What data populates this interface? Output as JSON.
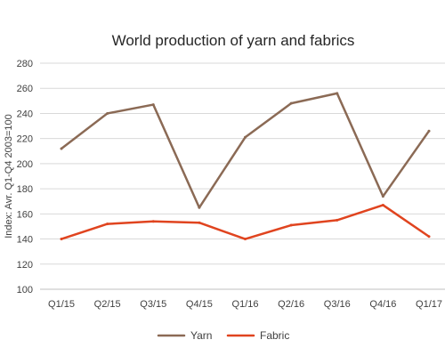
{
  "chart_data": {
    "type": "line",
    "title": "World production of yarn and fabrics",
    "xlabel": "",
    "ylabel": "Index: Avr. Q1-Q4 2003=100",
    "categories": [
      "Q1/15",
      "Q2/15",
      "Q3/15",
      "Q4/15",
      "Q1/16",
      "Q2/16",
      "Q3/16",
      "Q4/16",
      "Q1/17"
    ],
    "y_ticks": [
      100,
      120,
      140,
      160,
      180,
      200,
      220,
      240,
      260,
      280
    ],
    "ylim": [
      100,
      280
    ],
    "grid": true,
    "legend_position": "bottom",
    "series": [
      {
        "name": "Yarn",
        "color": "#8B6A55",
        "values": [
          212,
          240,
          247,
          165,
          221,
          248,
          256,
          174,
          226
        ]
      },
      {
        "name": "Fabric",
        "color": "#E0441F",
        "values": [
          140,
          152,
          154,
          153,
          140,
          151,
          155,
          167,
          142
        ]
      }
    ]
  }
}
